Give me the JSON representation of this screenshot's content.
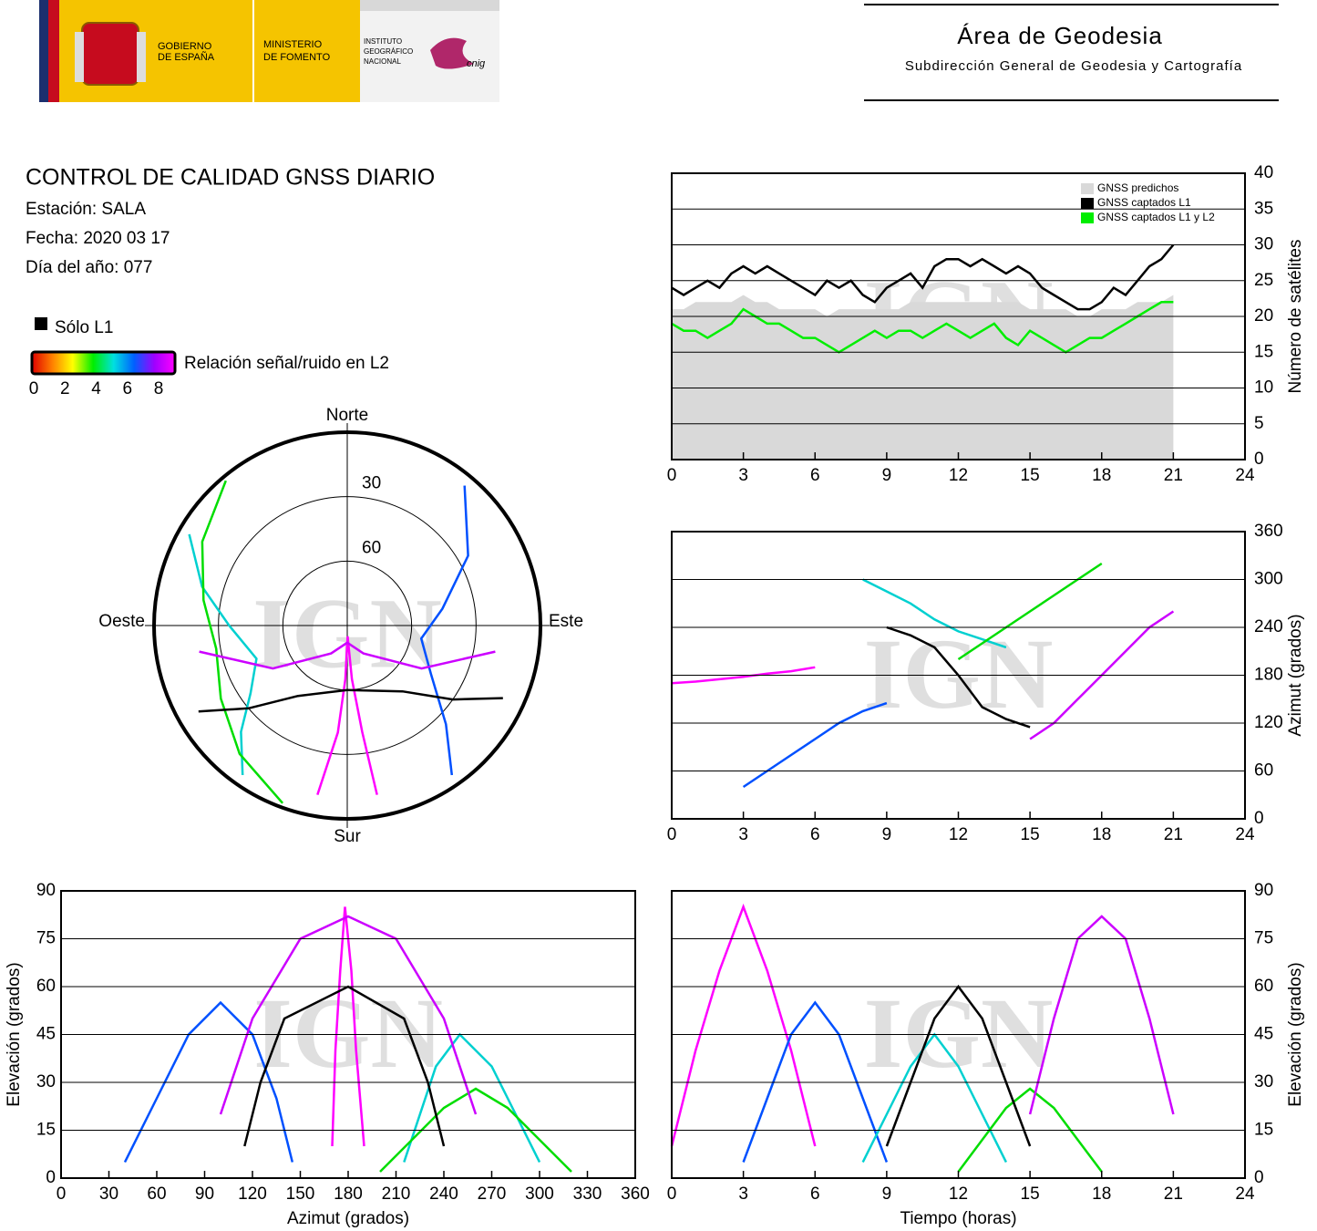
{
  "header": {
    "gov_line1": "GOBIERNO",
    "gov_line2": "DE ESPAÑA",
    "min_line1": "MINISTERIO",
    "min_line2": "DE FOMENTO",
    "inst_line1": "INSTITUTO",
    "inst_line2": "GEOGRÁFICO",
    "inst_line3": "NACIONAL",
    "cnig": "cnig",
    "title": "Área de Geodesia",
    "subtitle": "Subdirección General de Geodesia y Cartografía"
  },
  "info": {
    "title": "CONTROL DE CALIDAD GNSS DIARIO",
    "station": "Estación: SALA",
    "date": "Fecha: 2020 03 17",
    "doy": "Día del año: 077"
  },
  "legend": {
    "l1_only": "Sólo L1",
    "l1_color": "#000000",
    "snr_label": "Relación señal/ruido en L2",
    "snr_ticks": [
      0,
      2,
      4,
      6,
      8
    ],
    "snr_colors": [
      "#e00000",
      "#ff8000",
      "#ffff00",
      "#00ee00",
      "#00e0e0",
      "#0060ff",
      "#a000ff",
      "#ff00ff"
    ]
  },
  "watermark": "IGN",
  "chart_data": [
    {
      "type": "line",
      "ylabel": "Número de satélites",
      "xlim": [
        0,
        24
      ],
      "xticks": [
        0,
        3,
        6,
        9,
        12,
        15,
        18,
        21,
        24
      ],
      "ylim": [
        0,
        40
      ],
      "yticks": [
        0,
        5,
        10,
        15,
        20,
        25,
        30,
        35,
        40
      ],
      "grid": true,
      "legend": "top-right",
      "x": [
        0,
        0.5,
        1,
        1.5,
        2,
        2.5,
        3,
        3.5,
        4,
        4.5,
        5,
        5.5,
        6,
        6.5,
        7,
        7.5,
        8,
        8.5,
        9,
        9.5,
        10,
        10.5,
        11,
        11.5,
        12,
        12.5,
        13,
        13.5,
        14,
        14.5,
        15,
        15.5,
        16,
        16.5,
        17,
        17.5,
        18,
        18.5,
        19,
        19.5,
        20,
        20.5,
        21
      ],
      "series": [
        {
          "name": "GNSS predichos",
          "color": "#d9d9d9",
          "kind": "area",
          "values": [
            21,
            21,
            22,
            22,
            22,
            22,
            23,
            22,
            22,
            21,
            21,
            21,
            21,
            20,
            21,
            21,
            21,
            21,
            21,
            21,
            22,
            22,
            22,
            22,
            22,
            22,
            22,
            22,
            22,
            22,
            21,
            21,
            21,
            21,
            20,
            20,
            21,
            21,
            21,
            22,
            22,
            22,
            23
          ]
        },
        {
          "name": "GNSS captados L1",
          "color": "#000000",
          "kind": "line",
          "values": [
            24,
            23,
            24,
            25,
            24,
            26,
            27,
            26,
            27,
            26,
            25,
            24,
            23,
            25,
            24,
            25,
            23,
            22,
            24,
            25,
            26,
            24,
            27,
            28,
            28,
            27,
            28,
            27,
            26,
            27,
            26,
            24,
            23,
            22,
            21,
            21,
            22,
            24,
            23,
            25,
            27,
            28,
            30
          ]
        },
        {
          "name": "GNSS captados L1 y L2",
          "color": "#00ee00",
          "kind": "line",
          "values": [
            19,
            18,
            18,
            17,
            18,
            19,
            21,
            20,
            19,
            19,
            18,
            17,
            17,
            16,
            15,
            16,
            17,
            18,
            17,
            18,
            18,
            17,
            18,
            19,
            18,
            17,
            18,
            19,
            17,
            16,
            18,
            17,
            16,
            15,
            16,
            17,
            17,
            18,
            19,
            20,
            21,
            22,
            22
          ]
        }
      ]
    },
    {
      "type": "polar",
      "north": "Norte",
      "south": "Sur",
      "east": "Este",
      "west": "Oeste",
      "rlim": [
        0,
        90
      ],
      "rticks": [
        30,
        60
      ],
      "series": [
        {
          "color": "#ff00ff",
          "x": [
            170,
            172,
            175,
            178,
            182,
            185,
            190
          ],
          "values": [
            10,
            40,
            65,
            85,
            65,
            40,
            10
          ]
        },
        {
          "color": "#0050ff",
          "x": [
            40,
            60,
            80,
            100,
            120,
            135,
            145
          ],
          "values": [
            5,
            25,
            45,
            55,
            45,
            25,
            5
          ]
        },
        {
          "color": "#00d0d0",
          "x": [
            300,
            285,
            270,
            250,
            235,
            225,
            215
          ],
          "values": [
            5,
            20,
            35,
            45,
            35,
            20,
            5
          ]
        },
        {
          "color": "#00dd00",
          "x": [
            200,
            220,
            240,
            260,
            280,
            300,
            320
          ],
          "values": [
            2,
            12,
            22,
            28,
            22,
            12,
            2
          ]
        },
        {
          "color": "#000000",
          "x": [
            240,
            230,
            215,
            180,
            140,
            125,
            115
          ],
          "values": [
            10,
            30,
            50,
            60,
            50,
            30,
            10
          ]
        },
        {
          "color": "#cc00ff",
          "x": [
            100,
            120,
            150,
            180,
            210,
            240,
            260
          ],
          "values": [
            20,
            50,
            75,
            82,
            75,
            50,
            20
          ]
        }
      ]
    },
    {
      "type": "line",
      "xlabel": "Azimut (grados)",
      "ylabel": "Elevación (grados)",
      "xlim": [
        0,
        360
      ],
      "xticks": [
        0,
        30,
        60,
        90,
        120,
        150,
        180,
        210,
        240,
        270,
        300,
        330,
        360
      ],
      "ylim": [
        0,
        90
      ],
      "yticks": [
        0,
        15,
        30,
        45,
        60,
        75,
        90
      ],
      "grid": true,
      "series": [
        {
          "color": "#ff00ff",
          "x": [
            170,
            172,
            175,
            178,
            182,
            185,
            190
          ],
          "values": [
            10,
            40,
            65,
            85,
            65,
            40,
            10
          ]
        },
        {
          "color": "#0050ff",
          "x": [
            40,
            60,
            80,
            100,
            120,
            135,
            145
          ],
          "values": [
            5,
            25,
            45,
            55,
            45,
            25,
            5
          ]
        },
        {
          "color": "#00d0d0",
          "x": [
            300,
            285,
            270,
            250,
            235,
            225,
            215
          ],
          "values": [
            5,
            20,
            35,
            45,
            35,
            20,
            5
          ]
        },
        {
          "color": "#00dd00",
          "x": [
            200,
            220,
            240,
            260,
            280,
            300,
            320
          ],
          "values": [
            2,
            12,
            22,
            28,
            22,
            12,
            2
          ]
        },
        {
          "color": "#000000",
          "x": [
            240,
            230,
            215,
            180,
            140,
            125,
            115
          ],
          "values": [
            10,
            30,
            50,
            60,
            50,
            30,
            10
          ]
        },
        {
          "color": "#cc00ff",
          "x": [
            100,
            120,
            150,
            180,
            210,
            240,
            260
          ],
          "values": [
            20,
            50,
            75,
            82,
            75,
            50,
            20
          ]
        }
      ]
    },
    {
      "type": "line",
      "ylabel": "Azimut (grados)",
      "xlim": [
        0,
        24
      ],
      "xticks": [
        0,
        3,
        6,
        9,
        12,
        15,
        18,
        21,
        24
      ],
      "ylim": [
        0,
        360
      ],
      "yticks": [
        0,
        60,
        120,
        180,
        240,
        300,
        360
      ],
      "grid": true,
      "series": [
        {
          "color": "#ff00ff",
          "x": [
            0,
            1,
            2,
            3,
            4,
            5,
            6
          ],
          "values": [
            170,
            172,
            175,
            178,
            182,
            185,
            190
          ]
        },
        {
          "color": "#0050ff",
          "x": [
            3,
            4,
            5,
            6,
            7,
            8,
            9
          ],
          "values": [
            40,
            60,
            80,
            100,
            120,
            135,
            145
          ]
        },
        {
          "color": "#00d0d0",
          "x": [
            8,
            9,
            10,
            11,
            12,
            13,
            14
          ],
          "values": [
            300,
            285,
            270,
            250,
            235,
            225,
            215
          ]
        },
        {
          "color": "#00dd00",
          "x": [
            12,
            13,
            14,
            15,
            16,
            17,
            18
          ],
          "values": [
            200,
            220,
            240,
            260,
            280,
            300,
            320
          ]
        },
        {
          "color": "#000000",
          "x": [
            9,
            10,
            11,
            12,
            13,
            14,
            15
          ],
          "values": [
            240,
            230,
            215,
            180,
            140,
            125,
            115
          ]
        },
        {
          "color": "#cc00ff",
          "x": [
            15,
            16,
            17,
            18,
            19,
            20,
            21
          ],
          "values": [
            100,
            120,
            150,
            180,
            210,
            240,
            260
          ]
        }
      ]
    },
    {
      "type": "line",
      "xlabel": "Tiempo (horas)",
      "ylabel": "Elevación (grados)",
      "xlim": [
        0,
        24
      ],
      "xticks": [
        0,
        3,
        6,
        9,
        12,
        15,
        18,
        21,
        24
      ],
      "ylim": [
        0,
        90
      ],
      "yticks": [
        0,
        15,
        30,
        45,
        60,
        75,
        90
      ],
      "grid": true,
      "series": [
        {
          "color": "#ff00ff",
          "x": [
            0,
            1,
            2,
            3,
            4,
            5,
            6
          ],
          "values": [
            10,
            40,
            65,
            85,
            65,
            40,
            10
          ]
        },
        {
          "color": "#0050ff",
          "x": [
            3,
            4,
            5,
            6,
            7,
            8,
            9
          ],
          "values": [
            5,
            25,
            45,
            55,
            45,
            25,
            5
          ]
        },
        {
          "color": "#00d0d0",
          "x": [
            8,
            9,
            10,
            11,
            12,
            13,
            14
          ],
          "values": [
            5,
            20,
            35,
            45,
            35,
            20,
            5
          ]
        },
        {
          "color": "#00dd00",
          "x": [
            12,
            13,
            14,
            15,
            16,
            17,
            18
          ],
          "values": [
            2,
            12,
            22,
            28,
            22,
            12,
            2
          ]
        },
        {
          "color": "#000000",
          "x": [
            9,
            10,
            11,
            12,
            13,
            14,
            15
          ],
          "values": [
            10,
            30,
            50,
            60,
            50,
            30,
            10
          ]
        },
        {
          "color": "#cc00ff",
          "x": [
            15,
            16,
            17,
            18,
            19,
            20,
            21
          ],
          "values": [
            20,
            50,
            75,
            82,
            75,
            50,
            20
          ]
        }
      ]
    }
  ]
}
